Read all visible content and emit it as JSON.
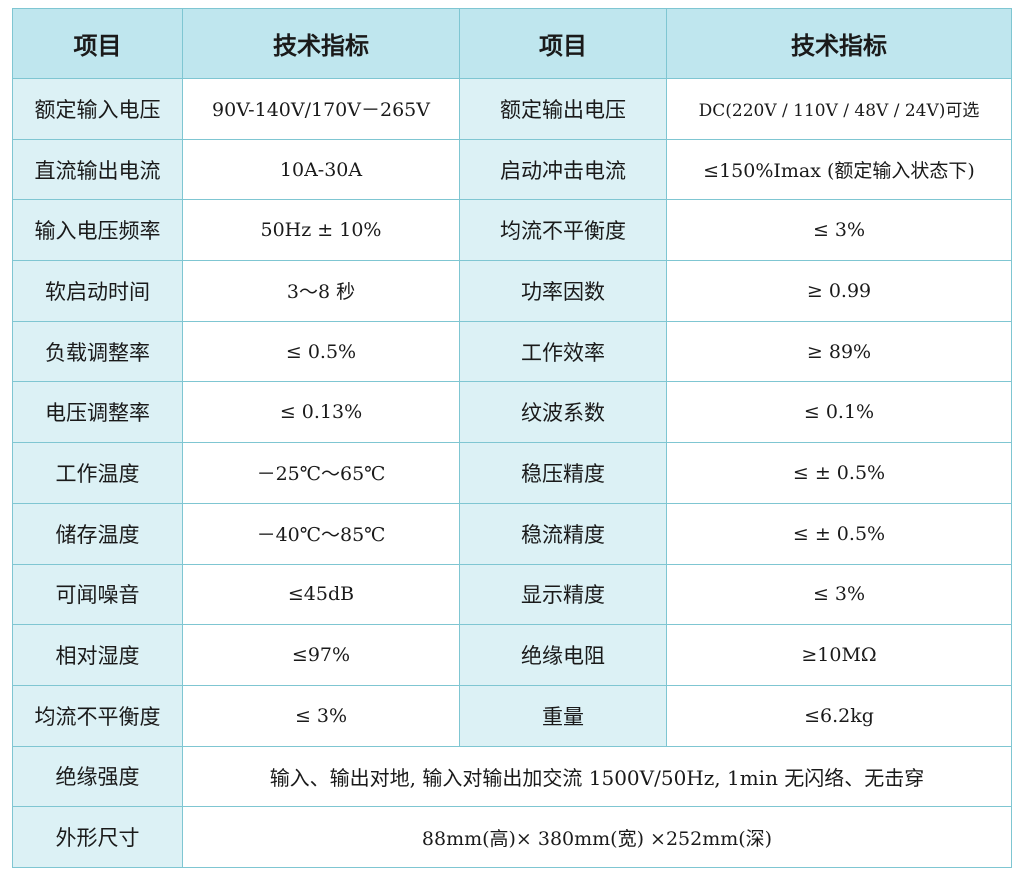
{
  "header": {
    "col1": "项目",
    "col2": "技术指标",
    "col3": "项目",
    "col4": "技术指标"
  },
  "rows": [
    [
      "额定输入电压",
      "90V-140V/170V－265V",
      "额定输出电压",
      "DC(220V / 110V / 48V / 24V)可选"
    ],
    [
      "直流输出电流",
      "10A-30A",
      "启动冲击电流",
      "≤150%Imax (额定输入状态下)"
    ],
    [
      "输入电压频率",
      "50Hz ± 10%",
      "均流不平衡度",
      "≤  3%"
    ],
    [
      "软启动时间",
      "3～8 秒",
      "功率因数",
      "≥  0.99"
    ],
    [
      "负载调整率",
      "≤  0.5%",
      "工作效率",
      "≥  89%"
    ],
    [
      "电压调整率",
      "≤  0.13%",
      "纹波系数",
      "≤  0.1%"
    ],
    [
      "工作温度",
      "－25℃～65℃",
      "稳压精度",
      "≤ ± 0.5%"
    ],
    [
      "储存温度",
      "－40℃～85℃",
      "稳流精度",
      "≤   ± 0.5%"
    ],
    [
      "可闻噪音",
      "≤45dB",
      "显示精度",
      "≤  3%"
    ],
    [
      "相对湿度",
      "≤97%",
      "绝缘电阻",
      "≥10MΩ"
    ],
    [
      "均流不平衡度",
      "≤  3%",
      "重量",
      "≤6.2kg"
    ]
  ],
  "insulation": {
    "label": "绝缘强度",
    "value": "输入、输出对地,  输入对输出加交流 1500V/50Hz,  1min 无闪络、无击穿"
  },
  "dimensions": {
    "label": "外形尺寸",
    "value": "88mm(高)×  380mm(宽)  ×252mm(深)"
  },
  "colors": {
    "header_bg": "#bfe6ee",
    "label_bg": "#dcf1f5",
    "border": "#7fc6d2"
  }
}
